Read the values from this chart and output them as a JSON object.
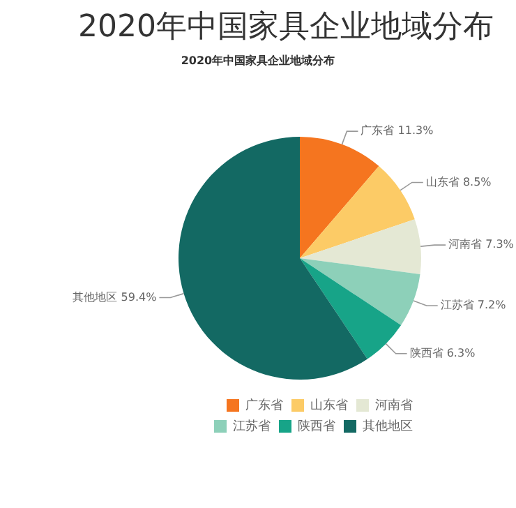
{
  "chart_data": {
    "type": "pie",
    "title": "2020年中国家具企业地域分布",
    "subtitle": "2020年中国家具企业地域分布",
    "categories": [
      "广东省",
      "山东省",
      "河南省",
      "江苏省",
      "陕西省",
      "其他地区"
    ],
    "values": [
      11.3,
      8.5,
      7.3,
      7.2,
      6.3,
      59.4
    ],
    "colors": [
      "#f5751f",
      "#fccb66",
      "#e4e8d4",
      "#8dd0b9",
      "#17a488",
      "#136963"
    ],
    "value_labels": [
      "广东省 11.3%",
      "山东省 8.5%",
      "河南省 7.3%",
      "江苏省 7.2%",
      "陕西省 6.3%",
      "其他地区 59.4%"
    ],
    "legend": "bottom"
  }
}
